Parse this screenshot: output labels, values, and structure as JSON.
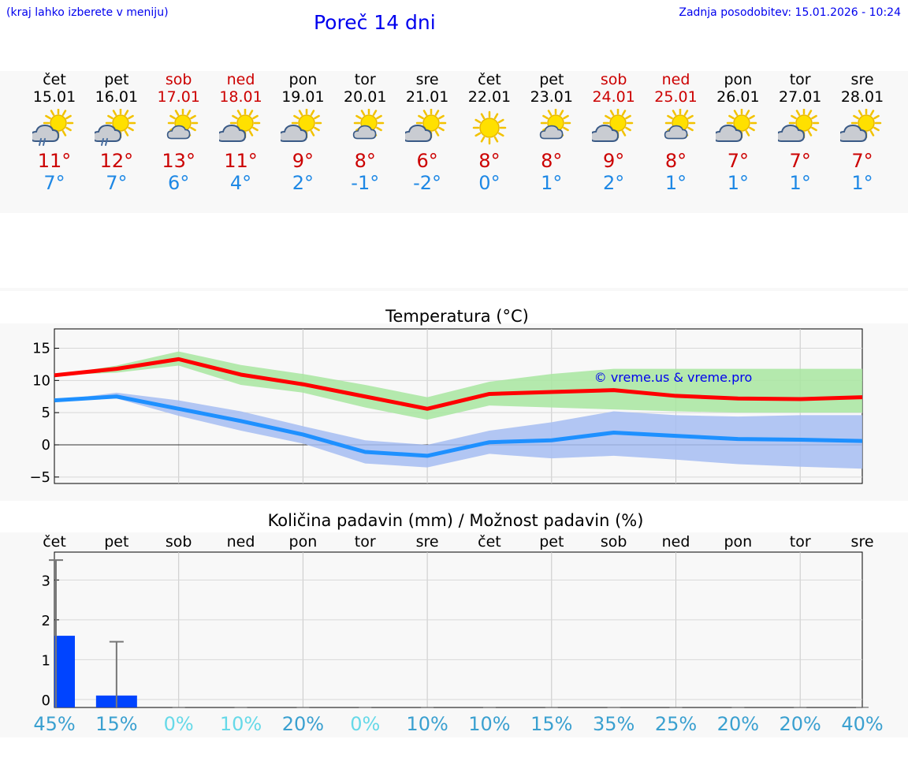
{
  "header": {
    "hint": "(kraj lahko izberete v meniju)",
    "title": "Poreč 14 dni",
    "updated": "Zadnja posodobitev: 15.01.2026 - 10:24"
  },
  "days": [
    {
      "name": "čet",
      "date": "15.01",
      "icon": "cloud-sun-rain-icon",
      "tmax": "11°",
      "tmin": "7°",
      "weekend": false
    },
    {
      "name": "pet",
      "date": "16.01",
      "icon": "cloud-sun-rain-icon",
      "tmax": "12°",
      "tmin": "7°",
      "weekend": false
    },
    {
      "name": "sob",
      "date": "17.01",
      "icon": "sun-cloud-icon",
      "tmax": "13°",
      "tmin": "6°",
      "weekend": true
    },
    {
      "name": "ned",
      "date": "18.01",
      "icon": "cloud-sun-icon",
      "tmax": "11°",
      "tmin": "4°",
      "weekend": true
    },
    {
      "name": "pon",
      "date": "19.01",
      "icon": "cloud-sun-icon",
      "tmax": "9°",
      "tmin": "2°",
      "weekend": false
    },
    {
      "name": "tor",
      "date": "20.01",
      "icon": "sun-cloud-icon",
      "tmax": "8°",
      "tmin": "-1°",
      "weekend": false
    },
    {
      "name": "sre",
      "date": "21.01",
      "icon": "cloud-sun-icon",
      "tmax": "6°",
      "tmin": "-2°",
      "weekend": false
    },
    {
      "name": "čet",
      "date": "22.01",
      "icon": "sun-icon",
      "tmax": "8°",
      "tmin": "0°",
      "weekend": false
    },
    {
      "name": "pet",
      "date": "23.01",
      "icon": "sun-cloud-icon",
      "tmax": "8°",
      "tmin": "1°",
      "weekend": false
    },
    {
      "name": "sob",
      "date": "24.01",
      "icon": "cloud-sun-icon",
      "tmax": "9°",
      "tmin": "2°",
      "weekend": true
    },
    {
      "name": "ned",
      "date": "25.01",
      "icon": "sun-cloud-icon",
      "tmax": "8°",
      "tmin": "1°",
      "weekend": true
    },
    {
      "name": "pon",
      "date": "26.01",
      "icon": "cloud-sun-icon",
      "tmax": "7°",
      "tmin": "1°",
      "weekend": false
    },
    {
      "name": "tor",
      "date": "27.01",
      "icon": "cloud-sun-icon",
      "tmax": "7°",
      "tmin": "1°",
      "weekend": false
    },
    {
      "name": "sre",
      "date": "28.01",
      "icon": "cloud-sun-icon",
      "tmax": "7°",
      "tmin": "1°",
      "weekend": false
    }
  ],
  "colors": {
    "max_line": "#ff0000",
    "min_line": "#1e90ff",
    "max_band": "#a8e6a0",
    "min_band": "#a6bdf2",
    "weekend": "#cc0000",
    "bar": "#0044ff",
    "watermark": "#0000ee"
  },
  "chart_data": [
    {
      "type": "line",
      "title": "Temperatura (°C)",
      "watermark": "© vreme.us & vreme.pro",
      "ylim": [
        -6,
        18
      ],
      "yticks": [
        15,
        10,
        5,
        0,
        -5
      ],
      "ytick_labels": [
        "15",
        "10",
        "5",
        "0",
        "−5"
      ],
      "x": [
        0,
        1,
        2,
        3,
        4,
        5,
        6,
        7,
        8,
        9,
        10,
        11,
        12,
        13
      ],
      "series": [
        {
          "name": "max",
          "values": [
            10.8,
            11.8,
            13.3,
            10.9,
            9.4,
            7.5,
            5.6,
            7.9,
            8.2,
            8.5,
            7.6,
            7.2,
            7.1,
            7.4
          ]
        },
        {
          "name": "min",
          "values": [
            6.9,
            7.5,
            5.6,
            3.7,
            1.6,
            -1.1,
            -1.7,
            0.4,
            0.7,
            1.9,
            1.4,
            0.9,
            0.8,
            0.6
          ]
        }
      ],
      "max_band": {
        "low": [
          10.8,
          11.2,
          12.3,
          9.3,
          8.1,
          5.8,
          3.9,
          6.1,
          5.8,
          5.5,
          5.2,
          5.0,
          5.0,
          5.0
        ],
        "high": [
          10.8,
          12.3,
          14.5,
          12.4,
          11.0,
          9.3,
          7.4,
          9.8,
          11.0,
          11.8,
          11.8,
          11.8,
          11.8,
          11.8
        ]
      },
      "min_band": {
        "low": [
          6.9,
          7.2,
          4.5,
          2.2,
          0.2,
          -2.9,
          -3.5,
          -1.4,
          -2.1,
          -1.7,
          -2.3,
          -3.0,
          -3.4,
          -3.7
        ],
        "high": [
          6.9,
          8.1,
          6.9,
          5.2,
          2.9,
          0.7,
          0.0,
          2.2,
          3.5,
          5.2,
          4.6,
          4.4,
          4.6,
          4.6
        ]
      }
    },
    {
      "type": "bar",
      "title": "Količina padavin (mm) / Možnost padavin (%)",
      "categories": [
        "čet",
        "pet",
        "sob",
        "ned",
        "pon",
        "tor",
        "sre",
        "čet",
        "pet",
        "sob",
        "ned",
        "pon",
        "tor",
        "sre"
      ],
      "values": [
        1.6,
        0.1,
        0,
        0,
        0,
        0,
        0,
        0,
        0,
        0,
        0,
        0,
        0,
        0
      ],
      "error_high": [
        3.5,
        1.45,
        0,
        0,
        0,
        0,
        0,
        0,
        0,
        0,
        0,
        0,
        0,
        0
      ],
      "ylim": [
        -0.2,
        3.7
      ],
      "yticks": [
        3,
        2,
        1,
        0
      ],
      "ytick_labels": [
        "3",
        "2",
        "1",
        "0"
      ],
      "probability": [
        "45%",
        "15%",
        "0%",
        "10%",
        "20%",
        "0%",
        "10%",
        "10%",
        "15%",
        "35%",
        "25%",
        "20%",
        "20%",
        "40%"
      ]
    }
  ]
}
